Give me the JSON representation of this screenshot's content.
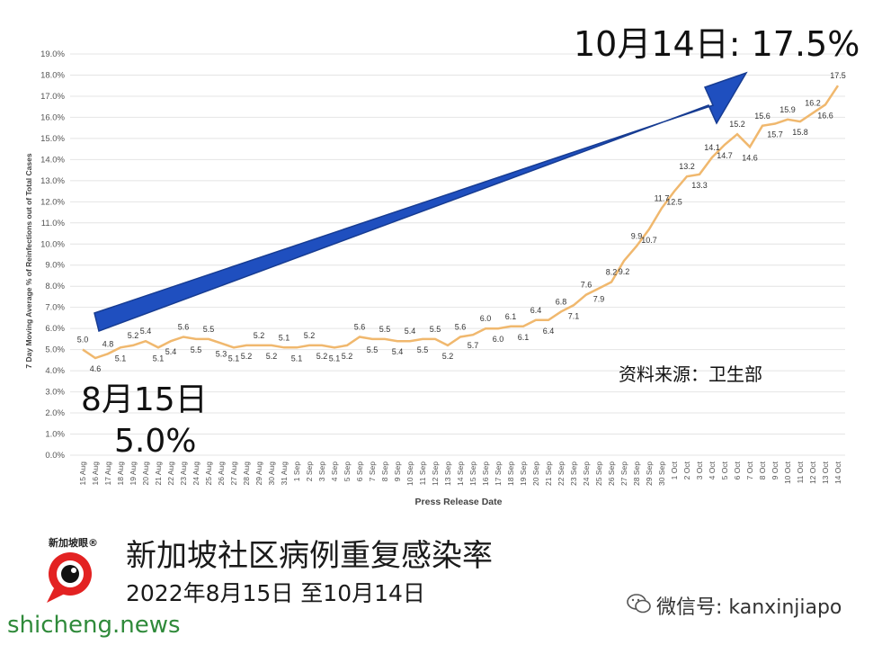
{
  "chart_data": {
    "type": "line",
    "title": "",
    "xlabel": "Press Release Date",
    "ylabel": "7 Day Moving Average % of Reinfections out of Total Cases",
    "ylim": [
      0,
      19
    ],
    "yticks": [
      "0.0%",
      "1.0%",
      "2.0%",
      "3.0%",
      "4.0%",
      "5.0%",
      "6.0%",
      "7.0%",
      "8.0%",
      "9.0%",
      "10.0%",
      "11.0%",
      "12.0%",
      "13.0%",
      "14.0%",
      "15.0%",
      "16.0%",
      "17.0%",
      "18.0%",
      "19.0%"
    ],
    "grid": true,
    "line_color": "#f0b86e",
    "categories": [
      "15 Aug",
      "16 Aug",
      "17 Aug",
      "18 Aug",
      "19 Aug",
      "20 Aug",
      "21 Aug",
      "22 Aug",
      "23 Aug",
      "24 Aug",
      "25 Aug",
      "26 Aug",
      "27 Aug",
      "28 Aug",
      "29 Aug",
      "30 Aug",
      "31 Aug",
      "1 Sep",
      "2 Sep",
      "3 Sep",
      "4 Sep",
      "5 Sep",
      "6 Sep",
      "7 Sep",
      "8 Sep",
      "9 Sep",
      "10 Sep",
      "11 Sep",
      "12 Sep",
      "13 Sep",
      "14 Sep",
      "15 Sep",
      "16 Sep",
      "17 Sep",
      "18 Sep",
      "19 Sep",
      "20 Sep",
      "21 Sep",
      "22 Sep",
      "23 Sep",
      "24 Sep",
      "25 Sep",
      "26 Sep",
      "27 Sep",
      "28 Sep",
      "29 Sep",
      "30 Sep",
      "1 Oct",
      "2 Oct",
      "3 Oct",
      "4 Oct",
      "5 Oct",
      "6 Oct",
      "7 Oct",
      "8 Oct",
      "9 Oct",
      "10 Oct",
      "11 Oct",
      "12 Oct",
      "13 Oct",
      "14 Oct"
    ],
    "values": [
      5.0,
      4.6,
      4.8,
      5.1,
      5.2,
      5.4,
      5.1,
      5.4,
      5.6,
      5.5,
      5.5,
      5.3,
      5.1,
      5.2,
      5.2,
      5.2,
      5.1,
      5.1,
      5.2,
      5.2,
      5.1,
      5.2,
      5.6,
      5.5,
      5.5,
      5.4,
      5.4,
      5.5,
      5.5,
      5.2,
      5.6,
      5.7,
      6.0,
      6.0,
      6.1,
      6.1,
      6.4,
      6.4,
      6.8,
      7.1,
      7.6,
      7.9,
      8.2,
      9.2,
      9.9,
      10.7,
      11.7,
      12.5,
      13.2,
      13.3,
      14.1,
      14.7,
      15.2,
      14.6,
      15.6,
      15.7,
      15.9,
      15.8,
      16.2,
      16.6,
      17.5
    ],
    "labels": [
      "5.0",
      "4.6",
      "4.8",
      "5.1",
      "5.2",
      "5.4",
      "5.1",
      "5.4",
      "5.6",
      "5.5",
      "5.5",
      "5.3",
      "5.1",
      "5.2",
      "5.2",
      "5.2",
      "5.1",
      "5.1",
      "5.2",
      "5.2",
      "5.1",
      "5.2",
      "5.6",
      "5.5",
      "5.5",
      "5.4",
      "5.4",
      "5.5",
      "5.5",
      "5.2",
      "5.6",
      "5.7",
      "6.0",
      "6.0",
      "6.1",
      "6.1",
      "6.4",
      "6.4",
      "6.8",
      "7.1",
      "7.6",
      "7.9",
      "8.2",
      "9.2",
      "9.9",
      "10.7",
      "11.7",
      "12.5",
      "13.2",
      "13.3",
      "14.1",
      "14.7",
      "15.2",
      "14.6",
      "15.6",
      "15.7",
      "15.9",
      "15.8",
      "16.2",
      "16.6",
      "17.5"
    ],
    "arrow_color": "#1f4fbf"
  },
  "annotations": {
    "top": "10月14日: 17.5%",
    "start_date": "8月15日",
    "start_value": "5.0%",
    "source": "资料来源：卫生部"
  },
  "footer": {
    "title": "新加坡社区病例重复感染率",
    "subtitle": "2022年8月15日 至10月14日",
    "logo_text": "新加坡眼®",
    "wechat": "微信号: kanxinjiapo",
    "watermark": "shicheng.news"
  }
}
